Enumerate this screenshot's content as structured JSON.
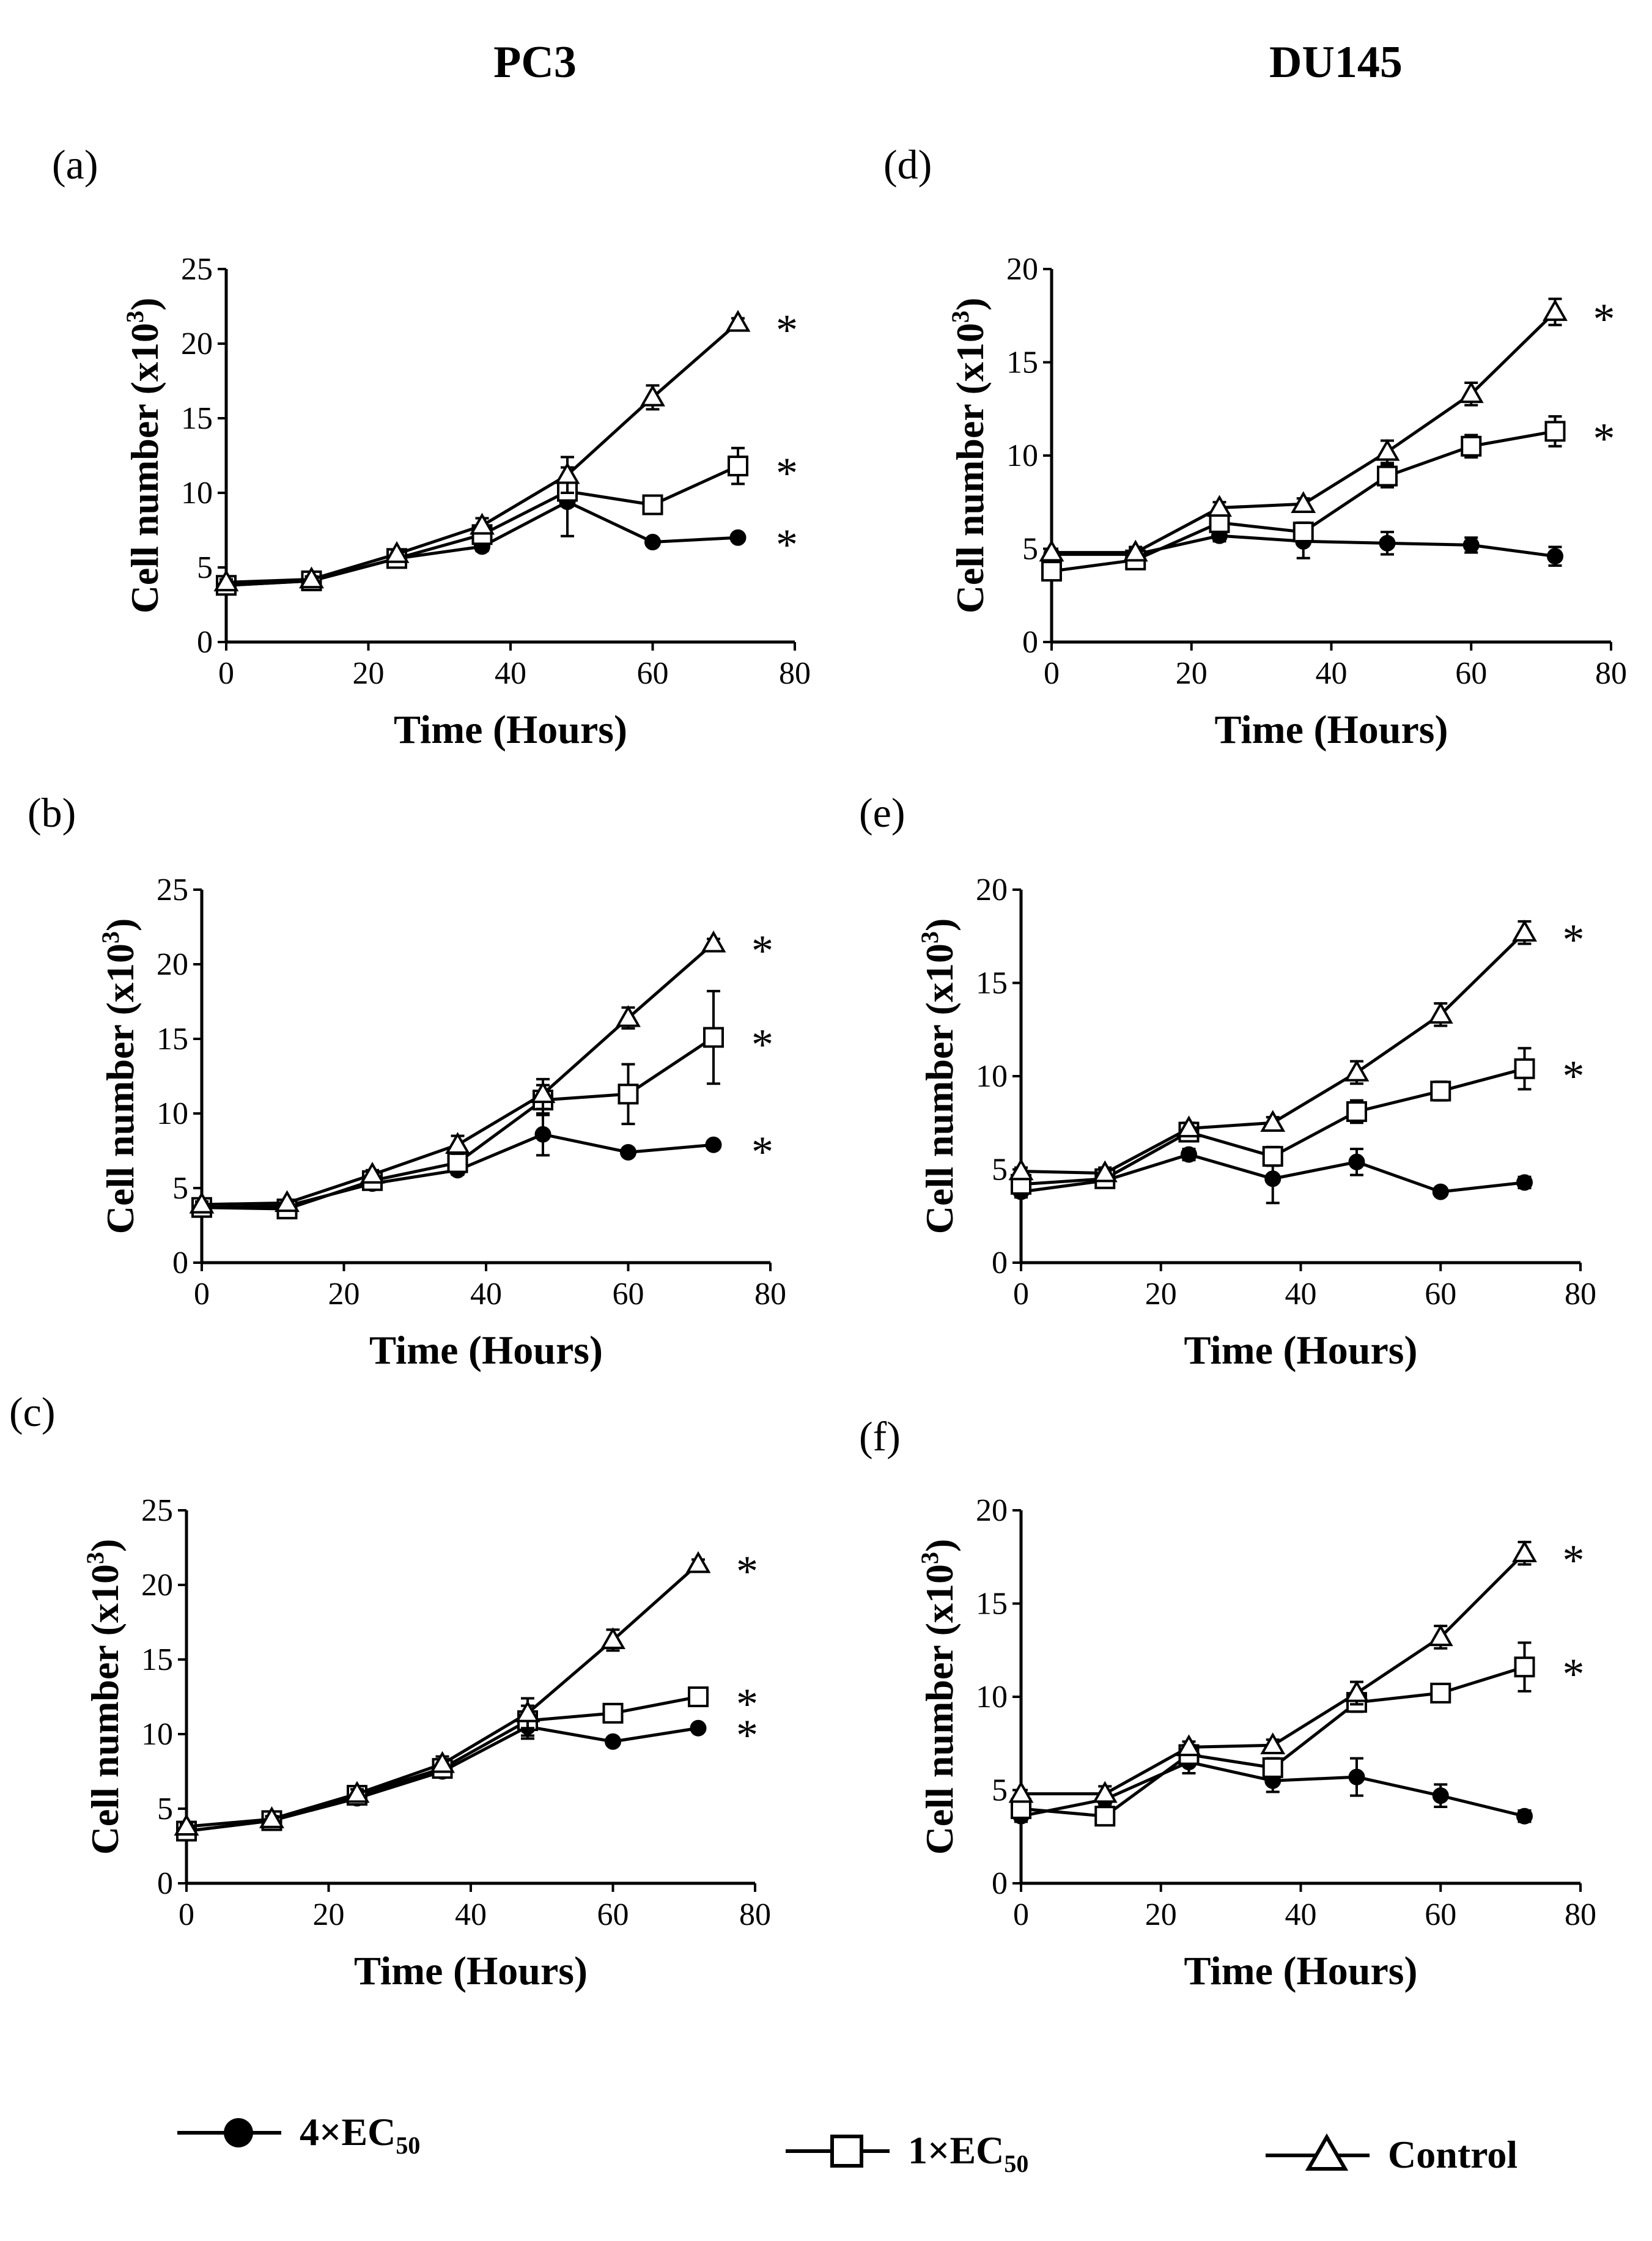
{
  "column_titles": [
    "PC3",
    "DU145"
  ],
  "legend": [
    {
      "marker": "circle-filled",
      "label": "4×EC",
      "sub": "50"
    },
    {
      "marker": "square-open",
      "label": "1×EC",
      "sub": "50"
    },
    {
      "marker": "triangle-open",
      "label": "Control",
      "sub": ""
    }
  ],
  "chart_data": [
    {
      "type": "line",
      "panel_label": "(a)",
      "cell_line": "PC3",
      "xlabel": "Time (Hours)",
      "ylabel": "Cell number (x10³)",
      "ylabel_base": "Cell number (x10",
      "ylabel_sup": "3",
      "ylabel_end": ")",
      "xlim": [
        0,
        80
      ],
      "ylim": [
        0,
        25
      ],
      "xticks": [
        0,
        20,
        40,
        60,
        80
      ],
      "yticks": [
        0,
        5,
        10,
        15,
        20,
        25
      ],
      "x": [
        0,
        12,
        24,
        36,
        48,
        60,
        72
      ],
      "series": [
        {
          "name": "4×EC50",
          "marker": "circle-filled",
          "values": [
            3.8,
            4.1,
            5.6,
            6.4,
            9.4,
            6.7,
            7.0
          ],
          "err": [
            0.2,
            0.2,
            0.2,
            0.3,
            2.3,
            0.2,
            0.2
          ]
        },
        {
          "name": "1×EC50",
          "marker": "square-open",
          "values": [
            3.8,
            4.1,
            5.6,
            7.2,
            10.1,
            9.2,
            11.8
          ],
          "err": [
            0.2,
            0.2,
            0.3,
            0.5,
            1.0,
            0.3,
            1.2
          ]
        },
        {
          "name": "Control",
          "marker": "triangle-open",
          "values": [
            4.0,
            4.2,
            5.9,
            7.8,
            11.2,
            16.4,
            21.4
          ],
          "err": [
            0.2,
            0.2,
            0.3,
            0.5,
            1.2,
            0.8,
            0.3
          ]
        }
      ],
      "annotations": [
        "*",
        "*",
        "*"
      ],
      "annotation_y": [
        21.4,
        11.8,
        7.0
      ]
    },
    {
      "type": "line",
      "panel_label": "(b)",
      "cell_line": "PC3",
      "xlabel": "Time (Hours)",
      "ylabel": "Cell number (x10³)",
      "ylabel_base": "Cell number (x10",
      "ylabel_sup": "3",
      "ylabel_end": ")",
      "xlim": [
        0,
        80
      ],
      "ylim": [
        0,
        25
      ],
      "xticks": [
        0,
        20,
        40,
        60,
        80
      ],
      "yticks": [
        0,
        5,
        10,
        15,
        20,
        25
      ],
      "x": [
        0,
        12,
        24,
        36,
        48,
        60,
        72
      ],
      "series": [
        {
          "name": "4×EC50",
          "marker": "circle-filled",
          "values": [
            3.7,
            3.8,
            5.3,
            6.2,
            8.6,
            7.4,
            7.9
          ],
          "err": [
            0.2,
            0.2,
            0.2,
            0.3,
            1.4,
            0.2,
            0.2
          ]
        },
        {
          "name": "1×EC50",
          "marker": "square-open",
          "values": [
            3.7,
            3.6,
            5.5,
            6.7,
            10.9,
            11.3,
            15.1
          ],
          "err": [
            0.2,
            0.2,
            0.3,
            0.6,
            1.0,
            2.0,
            3.1
          ]
        },
        {
          "name": "Control",
          "marker": "triangle-open",
          "values": [
            3.9,
            4.0,
            5.9,
            7.9,
            11.3,
            16.4,
            21.4
          ],
          "err": [
            0.2,
            0.2,
            0.3,
            0.6,
            1.0,
            0.7,
            0.3
          ]
        }
      ],
      "annotations": [
        "*",
        "*",
        "*"
      ],
      "annotation_y": [
        21.4,
        15.1,
        7.9
      ]
    },
    {
      "type": "line",
      "panel_label": "(c)",
      "cell_line": "PC3",
      "xlabel": "Time (Hours)",
      "ylabel": "Cell number (x10³)",
      "ylabel_base": "Cell number (x10",
      "ylabel_sup": "3",
      "ylabel_end": ")",
      "xlim": [
        0,
        80
      ],
      "ylim": [
        0,
        25
      ],
      "xticks": [
        0,
        20,
        40,
        60,
        80
      ],
      "yticks": [
        0,
        5,
        10,
        15,
        20,
        25
      ],
      "x": [
        0,
        12,
        24,
        36,
        48,
        60,
        72
      ],
      "series": [
        {
          "name": "4×EC50",
          "marker": "circle-filled",
          "values": [
            3.5,
            4.2,
            5.7,
            7.5,
            10.5,
            9.5,
            10.4
          ],
          "err": [
            0.2,
            0.2,
            0.2,
            0.3,
            0.8,
            0.2,
            0.2
          ]
        },
        {
          "name": "1×EC50",
          "marker": "square-open",
          "values": [
            3.5,
            4.2,
            5.9,
            7.7,
            10.9,
            11.4,
            12.5
          ],
          "err": [
            0.2,
            0.2,
            0.3,
            0.4,
            1.0,
            0.4,
            0.4
          ]
        },
        {
          "name": "Control",
          "marker": "triangle-open",
          "values": [
            3.8,
            4.3,
            6.0,
            8.0,
            11.4,
            16.3,
            21.4
          ],
          "err": [
            0.2,
            0.2,
            0.3,
            0.5,
            1.0,
            0.7,
            0.3
          ]
        }
      ],
      "annotations": [
        "*",
        "*",
        "*"
      ],
      "annotation_y": [
        21.4,
        12.5,
        10.4
      ]
    },
    {
      "type": "line",
      "panel_label": "(d)",
      "cell_line": "DU145",
      "xlabel": "Time (Hours)",
      "ylabel": "Cell number (x10³)",
      "ylabel_base": "Cell number (x10",
      "ylabel_sup": "3",
      "ylabel_end": ")",
      "xlim": [
        0,
        80
      ],
      "ylim": [
        0,
        20
      ],
      "xticks": [
        0,
        20,
        40,
        60,
        80
      ],
      "yticks": [
        0,
        5,
        10,
        15,
        20
      ],
      "x": [
        0,
        12,
        24,
        36,
        48,
        60,
        72
      ],
      "series": [
        {
          "name": "4×EC50",
          "marker": "circle-filled",
          "values": [
            4.7,
            4.7,
            5.7,
            5.4,
            5.3,
            5.2,
            4.6
          ],
          "err": [
            0.2,
            0.3,
            0.3,
            0.9,
            0.6,
            0.4,
            0.5
          ]
        },
        {
          "name": "1×EC50",
          "marker": "square-open",
          "values": [
            3.8,
            4.4,
            6.4,
            5.9,
            8.9,
            10.5,
            11.3
          ],
          "err": [
            0.4,
            0.4,
            0.4,
            0.5,
            0.6,
            0.6,
            0.8
          ]
        },
        {
          "name": "Control",
          "marker": "triangle-open",
          "values": [
            4.8,
            4.8,
            7.2,
            7.4,
            10.2,
            13.3,
            17.7
          ],
          "err": [
            0.2,
            0.3,
            0.3,
            0.3,
            0.6,
            0.6,
            0.7
          ]
        }
      ],
      "annotations": [
        "*",
        "*"
      ],
      "annotation_y": [
        17.7,
        11.3
      ]
    },
    {
      "type": "line",
      "panel_label": "(e)",
      "cell_line": "DU145",
      "xlabel": "Time (Hours)",
      "ylabel": "Cell number (x10³)",
      "ylabel_base": "Cell number (x10",
      "ylabel_sup": "3",
      "ylabel_end": ")",
      "xlim": [
        0,
        80
      ],
      "ylim": [
        0,
        20
      ],
      "xticks": [
        0,
        20,
        40,
        60,
        80
      ],
      "yticks": [
        0,
        5,
        10,
        15,
        20
      ],
      "x": [
        0,
        12,
        24,
        36,
        48,
        60,
        72
      ],
      "series": [
        {
          "name": "4×EC50",
          "marker": "circle-filled",
          "values": [
            3.8,
            4.4,
            5.8,
            4.5,
            5.4,
            3.8,
            4.3
          ],
          "err": [
            0.3,
            0.3,
            0.3,
            1.3,
            0.7,
            0.2,
            0.3
          ]
        },
        {
          "name": "1×EC50",
          "marker": "square-open",
          "values": [
            4.2,
            4.5,
            7.0,
            5.7,
            8.1,
            9.2,
            10.4
          ],
          "err": [
            0.3,
            0.4,
            0.4,
            0.5,
            0.6,
            0.5,
            1.1
          ]
        },
        {
          "name": "Control",
          "marker": "triangle-open",
          "values": [
            4.9,
            4.8,
            7.2,
            7.5,
            10.2,
            13.3,
            17.7
          ],
          "err": [
            0.2,
            0.3,
            0.3,
            0.3,
            0.6,
            0.6,
            0.6
          ]
        }
      ],
      "annotations": [
        "*",
        "*"
      ],
      "annotation_y": [
        17.7,
        10.4
      ]
    },
    {
      "type": "line",
      "panel_label": "(f)",
      "cell_line": "DU145",
      "xlabel": "Time (Hours)",
      "ylabel": "Cell number (x10³)",
      "ylabel_base": "Cell number (x10",
      "ylabel_sup": "3",
      "ylabel_end": ")",
      "xlim": [
        0,
        80
      ],
      "ylim": [
        0,
        20
      ],
      "xticks": [
        0,
        20,
        40,
        60,
        80
      ],
      "yticks": [
        0,
        5,
        10,
        15,
        20
      ],
      "x": [
        0,
        12,
        24,
        36,
        48,
        60,
        72
      ],
      "series": [
        {
          "name": "4×EC50",
          "marker": "circle-filled",
          "values": [
            3.6,
            4.5,
            6.5,
            5.5,
            5.7,
            4.7,
            3.6
          ],
          "err": [
            0.3,
            0.3,
            0.6,
            0.6,
            1.0,
            0.6,
            0.3
          ]
        },
        {
          "name": "1×EC50",
          "marker": "square-open",
          "values": [
            4.0,
            3.6,
            6.9,
            6.2,
            9.7,
            10.2,
            11.6
          ],
          "err": [
            0.3,
            0.3,
            0.5,
            0.5,
            0.5,
            0.3,
            1.3
          ]
        },
        {
          "name": "Control",
          "marker": "triangle-open",
          "values": [
            4.8,
            4.8,
            7.3,
            7.4,
            10.2,
            13.2,
            17.7
          ],
          "err": [
            0.2,
            0.4,
            0.3,
            0.3,
            0.6,
            0.6,
            0.6
          ]
        }
      ],
      "annotations": [
        "*",
        "*"
      ],
      "annotation_y": [
        17.7,
        11.6
      ]
    }
  ]
}
